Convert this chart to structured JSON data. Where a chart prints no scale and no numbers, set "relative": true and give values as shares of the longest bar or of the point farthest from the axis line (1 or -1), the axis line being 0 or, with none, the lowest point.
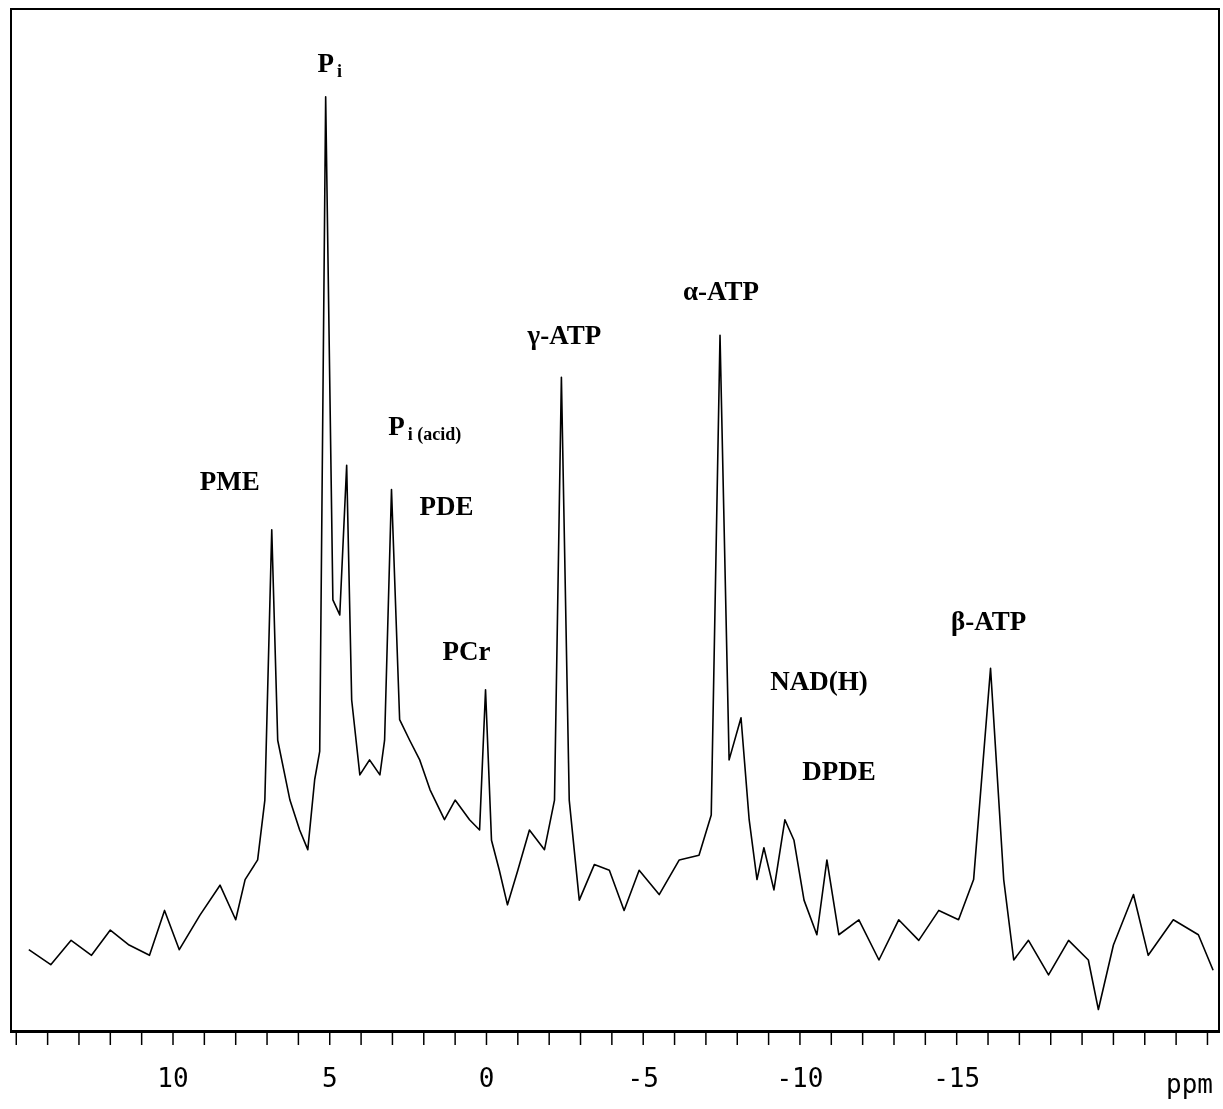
{
  "chart_data": {
    "type": "line",
    "relative": true,
    "xlabel": "ppm",
    "color": "#000000",
    "marker": "none",
    "xlim": [
      15.2,
      -23.4
    ],
    "xticks": [
      {
        "value": 15,
        "label": null
      },
      {
        "value": 14,
        "label": null
      },
      {
        "value": 13,
        "label": null
      },
      {
        "value": 12,
        "label": null
      },
      {
        "value": 11,
        "label": null
      },
      10,
      {
        "value": 9,
        "label": null
      },
      {
        "value": 8,
        "label": null
      },
      {
        "value": 7,
        "label": null
      },
      {
        "value": 6,
        "label": null
      },
      5,
      {
        "value": 4,
        "label": null
      },
      {
        "value": 3,
        "label": null
      },
      {
        "value": 2,
        "label": null
      },
      {
        "value": 1,
        "label": null
      },
      0,
      {
        "value": -1,
        "label": null
      },
      {
        "value": -2,
        "label": null
      },
      {
        "value": -3,
        "label": null
      },
      {
        "value": -4,
        "label": null
      },
      -5,
      {
        "value": -6,
        "label": null
      },
      {
        "value": -7,
        "label": null
      },
      {
        "value": -8,
        "label": null
      },
      {
        "value": -9,
        "label": null
      },
      -10,
      {
        "value": -11,
        "label": null
      },
      {
        "value": -12,
        "label": null
      },
      {
        "value": -13,
        "label": null
      },
      {
        "value": -14,
        "label": null
      },
      -15,
      {
        "value": -16,
        "label": null
      },
      {
        "value": -17,
        "label": null
      },
      {
        "value": -18,
        "label": null
      },
      {
        "value": -19,
        "label": null
      },
      {
        "value": -20,
        "label": null
      },
      {
        "value": -21,
        "label": null
      },
      {
        "value": -22,
        "label": null
      },
      {
        "value": -23,
        "label": null
      }
    ],
    "x": [
      14.6,
      13.9,
      13.25,
      12.6,
      12.0,
      11.4,
      10.75,
      10.27,
      9.8,
      9.14,
      8.5,
      8.0,
      7.7,
      7.3,
      7.07,
      6.85,
      6.66,
      6.27,
      5.96,
      5.7,
      5.48,
      5.32,
      5.13,
      4.9,
      4.68,
      4.46,
      4.3,
      4.04,
      3.73,
      3.4,
      3.25,
      3.03,
      2.77,
      2.45,
      2.13,
      1.8,
      1.34,
      1.0,
      0.54,
      0.22,
      0.03,
      -0.16,
      -0.41,
      -0.67,
      -1.0,
      -1.37,
      -1.85,
      -2.17,
      -2.39,
      -2.64,
      -2.96,
      -3.44,
      -3.92,
      -4.39,
      -4.87,
      -5.51,
      -6.15,
      -6.78,
      -7.17,
      -7.45,
      -7.74,
      -8.12,
      -8.38,
      -8.63,
      -8.85,
      -9.17,
      -9.52,
      -9.81,
      -10.13,
      -10.54,
      -10.86,
      -11.24,
      -11.88,
      -12.52,
      -13.15,
      -13.79,
      -14.43,
      -15.06,
      -15.54,
      -16.08,
      -16.5,
      -16.82,
      -17.29,
      -17.93,
      -18.57,
      -19.2,
      -19.52,
      -20.0,
      -20.64,
      -21.11,
      -21.91,
      -22.71,
      -23.18
    ],
    "values": [
      0.088,
      0.072,
      0.098,
      0.082,
      0.109,
      0.093,
      0.082,
      0.13,
      0.088,
      0.125,
      0.157,
      0.12,
      0.163,
      0.184,
      0.248,
      0.537,
      0.312,
      0.248,
      0.216,
      0.195,
      0.27,
      0.3,
      1,
      0.462,
      0.446,
      0.606,
      0.355,
      0.275,
      0.291,
      0.275,
      0.312,
      0.58,
      0.334,
      0.312,
      0.291,
      0.259,
      0.227,
      0.248,
      0.227,
      0.216,
      0.366,
      0.205,
      0.173,
      0.136,
      0.173,
      0.216,
      0.195,
      0.248,
      0.7,
      0.248,
      0.141,
      0.179,
      0.173,
      0.13,
      0.173,
      0.147,
      0.184,
      0.189,
      0.232,
      0.745,
      0.291,
      0.336,
      0.227,
      0.163,
      0.197,
      0.152,
      0.227,
      0.205,
      0.141,
      0.104,
      0.184,
      0.104,
      0.12,
      0.077,
      0.12,
      0.098,
      0.13,
      0.12,
      0.163,
      0.389,
      0.163,
      0.077,
      0.098,
      0.061,
      0.098,
      0.077,
      0.024,
      0.093,
      0.147,
      0.082,
      0.12,
      0.104,
      0.066
    ],
    "annotations": [
      {
        "text": "PME",
        "x": 6.85,
        "y": 0.537
      },
      {
        "text": "P$_{i}$",
        "x": 5.13,
        "y": 1
      },
      {
        "text": "P$_{i (acid)}$",
        "x": 4.46,
        "y": 0.606
      },
      {
        "text": "PDE",
        "x": 3.03,
        "y": 0.58
      },
      {
        "text": "PCr",
        "x": 0.03,
        "y": 0.366
      },
      {
        "text": "γ-ATP",
        "x": -2.39,
        "y": 0.7
      },
      {
        "text": "α-ATP",
        "x": -7.45,
        "y": 0.745
      },
      {
        "text": "NAD(H)",
        "x": -8.12,
        "y": 0.336
      },
      {
        "text": "DPDE",
        "x": -9.52,
        "y": 0.227
      },
      {
        "text": "β-ATP",
        "x": -16.08,
        "y": 0.389
      }
    ]
  }
}
